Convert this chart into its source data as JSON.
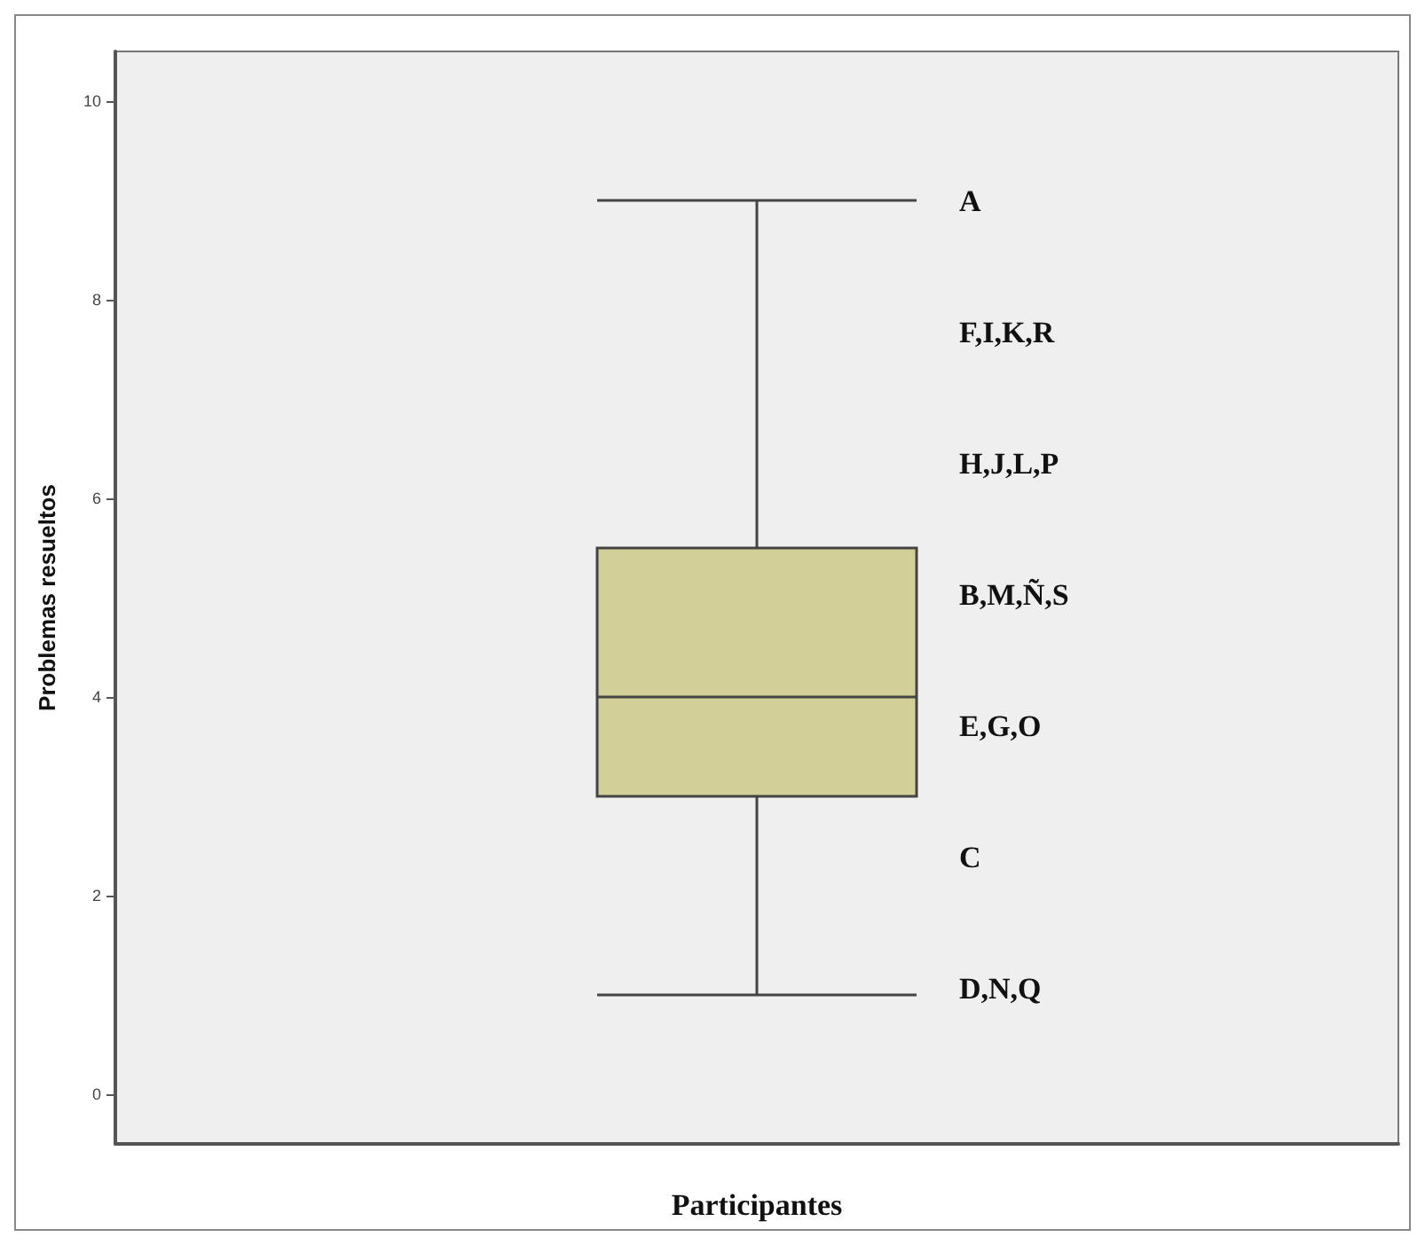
{
  "chart_data": {
    "type": "box",
    "xlabel": "Participantes",
    "ylabel": "Problemas resueltos",
    "categories": [
      null
    ],
    "series": [
      {
        "color": "#d3cf99",
        "boxes": [
          {
            "low": 1,
            "q1": 3,
            "median": 4,
            "q3": 5.5,
            "high": 9
          }
        ]
      }
    ],
    "ylim": [
      -0.5,
      10.5
    ],
    "yticks": [
      0,
      2,
      4,
      6,
      8,
      10
    ],
    "grid": false,
    "annotations": [
      "A",
      "F,I,K,R",
      "H,J,L,P",
      "B,M,Ñ,S",
      "E,G,O",
      "C",
      "D,N,Q"
    ]
  }
}
